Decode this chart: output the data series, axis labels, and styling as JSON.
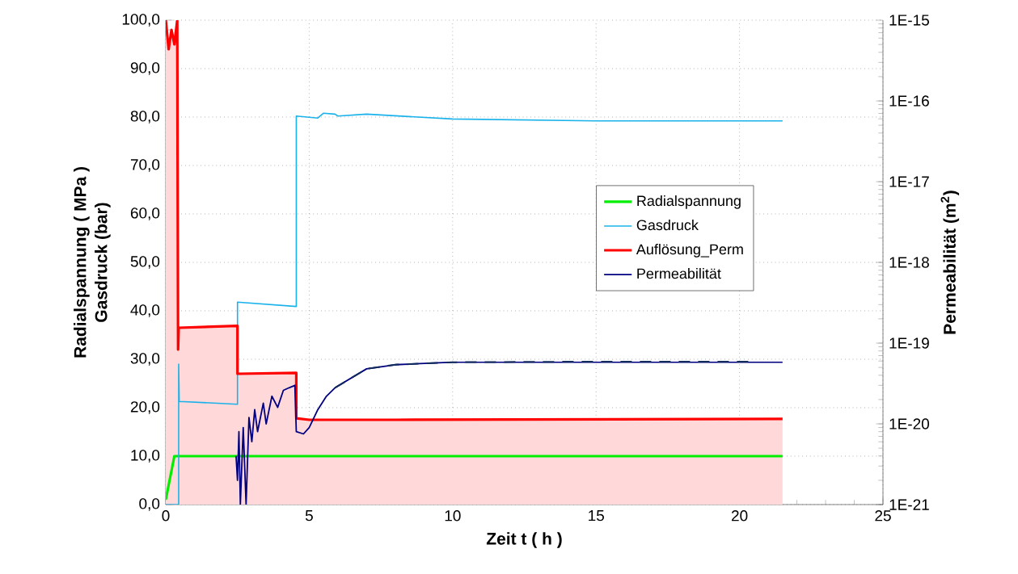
{
  "chart_data": {
    "type": "line",
    "xlabel": "Zeit t ( h )",
    "ylabel": [
      "Radialspannung ( MPa )",
      "Gasdruck (bar)"
    ],
    "y2label": "Permeabilität (m$^{2}$)",
    "xlim": [
      0,
      25
    ],
    "xticks": [
      0,
      5,
      10,
      15,
      20,
      25
    ],
    "ylim": [
      0,
      100
    ],
    "yticks": [
      {
        "value": 0,
        "label": "0,0"
      },
      {
        "value": 10,
        "label": "10,0"
      },
      {
        "value": 20,
        "label": "20,0"
      },
      {
        "value": 30,
        "label": "30,0"
      },
      {
        "value": 40,
        "label": "40,0"
      },
      {
        "value": 50,
        "label": "50,0"
      },
      {
        "value": 60,
        "label": "60,0"
      },
      {
        "value": 70,
        "label": "70,0"
      },
      {
        "value": 80,
        "label": "80,0"
      },
      {
        "value": 90,
        "label": "90,0"
      },
      {
        "value": 100,
        "label": "100,0"
      }
    ],
    "y2lim": [
      1e-21,
      1e-15
    ],
    "y2ticks": [
      {
        "value": 1e-21,
        "label": "1E-21"
      },
      {
        "value": 1e-20,
        "label": "1E-20"
      },
      {
        "value": 1e-19,
        "label": "1E-19"
      },
      {
        "value": 1e-18,
        "label": "1E-18"
      },
      {
        "value": 1e-17,
        "label": "1E-17"
      },
      {
        "value": 1e-16,
        "label": "1E-16"
      },
      {
        "value": 1e-15,
        "label": "1E-15"
      }
    ],
    "log": "y2",
    "grid": true,
    "legend": "right",
    "series": [
      {
        "name": "Radialspannung",
        "color": "#00ee00",
        "x": [
          0,
          0.3,
          21.5
        ],
        "values": [
          1,
          10,
          10
        ]
      },
      {
        "name": "Gasdruck",
        "color": "#1ab2ea",
        "x": [
          0,
          0.45,
          0.45,
          0.47,
          2.5,
          2.5,
          4.55,
          4.55,
          5.3,
          5.5,
          5.9,
          6,
          7,
          10,
          15,
          21.5
        ],
        "values": [
          0,
          0,
          29,
          21.3,
          20.7,
          41.8,
          40.9,
          80.2,
          79.8,
          80.8,
          80.6,
          80.2,
          80.6,
          79.6,
          79.2,
          79.2
        ]
      },
      {
        "name": "Auflösung_Perm",
        "type": "area",
        "color": "#ff0000",
        "x": [
          0,
          0.1,
          0.2,
          0.3,
          0.4,
          0.43,
          0.45,
          2.5,
          2.5,
          4.55,
          4.55,
          5,
          8,
          21.5
        ],
        "values": [
          100,
          94,
          98,
          95,
          100,
          32,
          36.5,
          36.9,
          27,
          27.2,
          17.8,
          17.5,
          17.5,
          17.7
        ]
      },
      {
        "name": "Permeabilität",
        "color": "#000080",
        "axis": "y2",
        "x": [
          2.45,
          2.5,
          2.55,
          2.6,
          2.7,
          2.8,
          2.9,
          3.0,
          3.1,
          3.2,
          3.4,
          3.5,
          3.7,
          3.9,
          4.1,
          4.3,
          4.5,
          4.55,
          4.8,
          5.0,
          5.3,
          5.6,
          5.9,
          7,
          8,
          10,
          15,
          21.5
        ],
        "values": [
          4e-21,
          2e-21,
          8e-21,
          1e-21,
          9e-21,
          1e-21,
          1.2e-20,
          6e-21,
          1.5e-20,
          8e-21,
          1.8e-20,
          1e-20,
          2.2e-20,
          1.6e-20,
          2.6e-20,
          2.8e-20,
          3e-20,
          8e-21,
          7.5e-21,
          9e-21,
          1.5e-20,
          2.2e-20,
          2.8e-20,
          4.8e-20,
          5.4e-20,
          5.8e-20,
          5.8e-20,
          5.8e-20
        ]
      },
      {
        "color": "#102a5c",
        "axis": "y2",
        "line_style": "dashed",
        "x": [
          5.9,
          7,
          8,
          10,
          15,
          20.5
        ],
        "values": [
          2.8e-20,
          4.8e-20,
          5.4e-20,
          5.8e-20,
          5.9e-20,
          5.9e-20
        ]
      }
    ]
  }
}
